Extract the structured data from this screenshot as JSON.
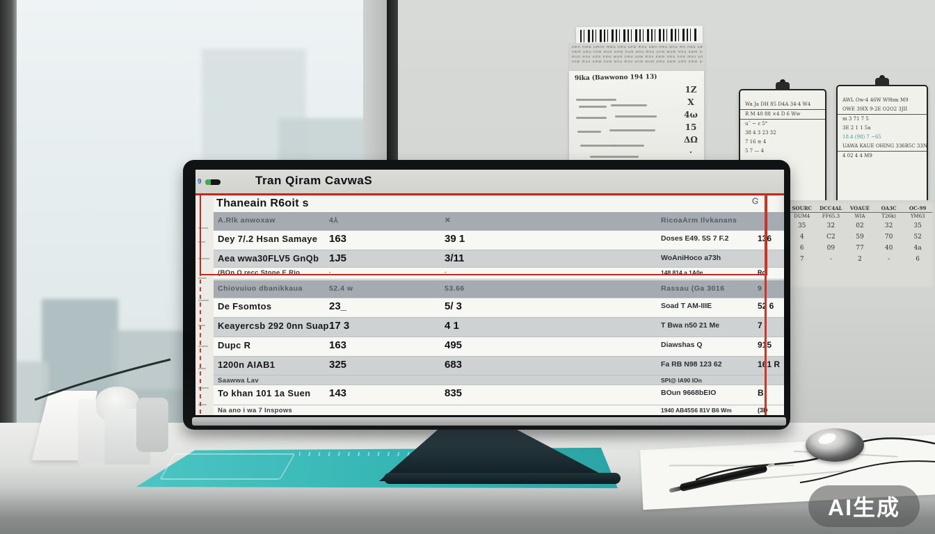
{
  "watermark": {
    "label": "AI生成"
  },
  "wall": {
    "smallprint": {
      "lines": [
        "umn nmw umnn mwu nmu unw mnu uwn nmu wnu mn nwu um",
        "nwm umu nnw mun umw num wnu mnu unm wum nmu uwm nn",
        "mun wnu umn nmu wum nmu unw mnu nwm umu nnw mun um",
        "nnw mun umw num wnu mnu unm wum nmu uwm umn nmw uu"
      ]
    },
    "note": {
      "title": "9ika (Bawwono 194 13)",
      "numbers": [
        "1Z",
        "X",
        "4ω",
        "15",
        "ΔΩ",
        "·"
      ]
    },
    "clipboard1": {
      "rows": [
        "Wa Ja  DH 85  D4A 34-4 W4",
        "R M 40   88 ×4 D   6 Ww",
        "u¯    ~    ε    5°",
        "38   4   3   23   32",
        "7    16    ≡    4",
        "5    7    —    4"
      ]
    },
    "clipboard2": {
      "rows": [
        "AWL  Ow-4  46W  W9bm  M9",
        "OWE 39IX 9-2E O2O2 3JII",
        "m    3    71    7    5",
        "3E   2    1    1    5a",
        "18.4  (98)   7   ~65",
        "UAWA KAUE OHING 336B5C 33NE",
        "4   02   4   4   M9"
      ]
    },
    "wallchart": {
      "headers": [
        "SOURC",
        "DCC4AL",
        "VOAUE",
        "OA3C",
        "OC-99"
      ],
      "subheaders": [
        "DUM4",
        "FF65.3",
        "WIA",
        "T26k)",
        "YM63"
      ],
      "rows": [
        [
          "35",
          "32",
          "02",
          "32",
          "35"
        ],
        [
          "4",
          "C2",
          "59",
          "70",
          "52"
        ],
        [
          "6",
          "09",
          "77",
          "40",
          "4a"
        ],
        [
          "7",
          "-",
          "2",
          "-",
          "6"
        ]
      ]
    }
  },
  "screen": {
    "titlebar": {
      "title": "Tran Qiram CavwaS",
      "badge": "9"
    },
    "page_title": "Thaneain R6oit s",
    "corner_glyph": "G",
    "section1": {
      "header": {
        "label": "A.Rlk anwoxaw",
        "v1": "4⅄",
        "v2": "✕",
        "rlabel": "RicoaArm Ilvkanans",
        "rv": ""
      },
      "rows": [
        {
          "label": "Dey 7/.2 Hsan Samaye",
          "v1": "163",
          "v2": "39 1",
          "rlabel": "Doses E49. 5S 7 F.2",
          "rv": "136"
        },
        {
          "label": "Aea wwa30FLV5 GnQb",
          "v1": "1J5",
          "v2": "3/11",
          "rlabel": "WoAniHoco a73h",
          "rv": ""
        },
        {
          "label": "(BOn O recc Stone E Rio",
          "v1": "·",
          "v2": "·",
          "rlabel": "148   814 a 1A0e",
          "rv": "Rd"
        }
      ]
    },
    "section2": {
      "header": {
        "label": "Chiovuiuo dbanikkaua",
        "v1": "52.4 w",
        "v2": "53.66",
        "rlabel": "Rassau (Ga 3016",
        "rv": "9"
      },
      "rows": [
        {
          "label": "De Fsomtos",
          "v1": "23_",
          "v2": "5/ 3",
          "rlabel": "Soad T AM-IIIE",
          "rv": "52 6"
        },
        {
          "label": "Keayercsb   292 0nn Suap",
          "v1": "17 3",
          "v2": "4 1",
          "rlabel": "T Bwa n50 21 Me",
          "rv": "7"
        },
        {
          "label": "Dupc R",
          "v1": "163",
          "v2": "495",
          "rlabel": "Diawshas Q",
          "rv": "915"
        },
        {
          "label": "1200n AIAB1",
          "v1": "325",
          "v2": "683",
          "rlabel": "Fa RB N98 123 62",
          "rv": "161 R"
        },
        {
          "label": "Saawwa Lav",
          "v1": "",
          "v2": "",
          "rlabel": "SPI@ IA90 IOn",
          "rv": ""
        },
        {
          "label": "To khan 101 1a Suen",
          "v1": "143",
          "v2": "835",
          "rlabel": "BOun 9668bEIO",
          "rv": "B"
        },
        {
          "label": "Na ano i wa  7 Inspows",
          "v1": "",
          "v2": "",
          "rlabel": "1940 AB45S6 81V B6 Wm",
          "rv": "(3D"
        }
      ]
    }
  }
}
